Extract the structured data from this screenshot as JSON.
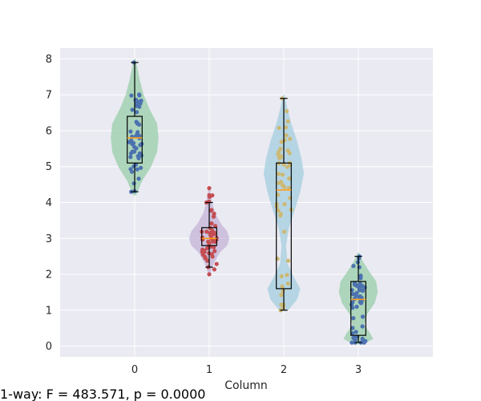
{
  "chart_data": {
    "type": "violin-box-strip",
    "xlabel": "Column",
    "ylabel": "",
    "categories": [
      "0",
      "1",
      "2",
      "3"
    ],
    "ylim": [
      -0.3,
      8.3
    ],
    "yticks": [
      "0",
      "1",
      "2",
      "3",
      "4",
      "5",
      "6",
      "7",
      "8"
    ],
    "grid": true,
    "legend": "none",
    "groups": [
      {
        "category": "0",
        "min": 4.3,
        "q1": 5.1,
        "median": 5.8,
        "q3": 6.4,
        "max": 7.9,
        "violin_color": "#9ccfad",
        "point_color": "#4c72b0",
        "violin_profile": [
          [
            4.2,
            0.02
          ],
          [
            4.6,
            0.1
          ],
          [
            5.0,
            0.22
          ],
          [
            5.4,
            0.3
          ],
          [
            5.8,
            0.32
          ],
          [
            6.2,
            0.3
          ],
          [
            6.6,
            0.2
          ],
          [
            7.0,
            0.12
          ],
          [
            7.4,
            0.07
          ],
          [
            7.8,
            0.03
          ],
          [
            8.0,
            0.01
          ]
        ]
      },
      {
        "category": "1",
        "min": 2.2,
        "q1": 2.8,
        "median": 3.0,
        "q3": 3.3,
        "max": 4.0,
        "outliers": [
          2.0,
          4.2,
          4.4
        ],
        "violin_color": "#c6b6d8",
        "point_color": "#c44e52",
        "violin_profile": [
          [
            2.0,
            0.01
          ],
          [
            2.3,
            0.06
          ],
          [
            2.6,
            0.14
          ],
          [
            2.8,
            0.24
          ],
          [
            3.0,
            0.27
          ],
          [
            3.2,
            0.24
          ],
          [
            3.4,
            0.16
          ],
          [
            3.7,
            0.08
          ],
          [
            4.0,
            0.04
          ],
          [
            4.4,
            0.01
          ]
        ]
      },
      {
        "category": "2",
        "min": 1.0,
        "q1": 1.6,
        "median": 4.35,
        "q3": 5.1,
        "max": 6.9,
        "violin_color": "#a8d0e0",
        "point_color": "#ccb974",
        "violin_profile": [
          [
            1.0,
            0.06
          ],
          [
            1.3,
            0.18
          ],
          [
            1.6,
            0.22
          ],
          [
            1.9,
            0.14
          ],
          [
            2.3,
            0.05
          ],
          [
            2.8,
            0.03
          ],
          [
            3.3,
            0.07
          ],
          [
            3.8,
            0.15
          ],
          [
            4.3,
            0.22
          ],
          [
            4.8,
            0.27
          ],
          [
            5.2,
            0.24
          ],
          [
            5.7,
            0.18
          ],
          [
            6.2,
            0.1
          ],
          [
            6.6,
            0.05
          ],
          [
            7.0,
            0.01
          ]
        ]
      },
      {
        "category": "3",
        "min": 0.1,
        "q1": 0.3,
        "median": 1.3,
        "q3": 1.8,
        "max": 2.5,
        "violin_color": "#9ccfad",
        "point_color": "#4c72b0",
        "violin_profile": [
          [
            0.05,
            0.06
          ],
          [
            0.2,
            0.2
          ],
          [
            0.35,
            0.16
          ],
          [
            0.6,
            0.08
          ],
          [
            0.9,
            0.12
          ],
          [
            1.2,
            0.22
          ],
          [
            1.5,
            0.26
          ],
          [
            1.8,
            0.24
          ],
          [
            2.1,
            0.14
          ],
          [
            2.4,
            0.05
          ],
          [
            2.6,
            0.01
          ]
        ]
      }
    ]
  },
  "footer": {
    "annotation": "1-way: F = 483.571, p = 0.0000"
  }
}
